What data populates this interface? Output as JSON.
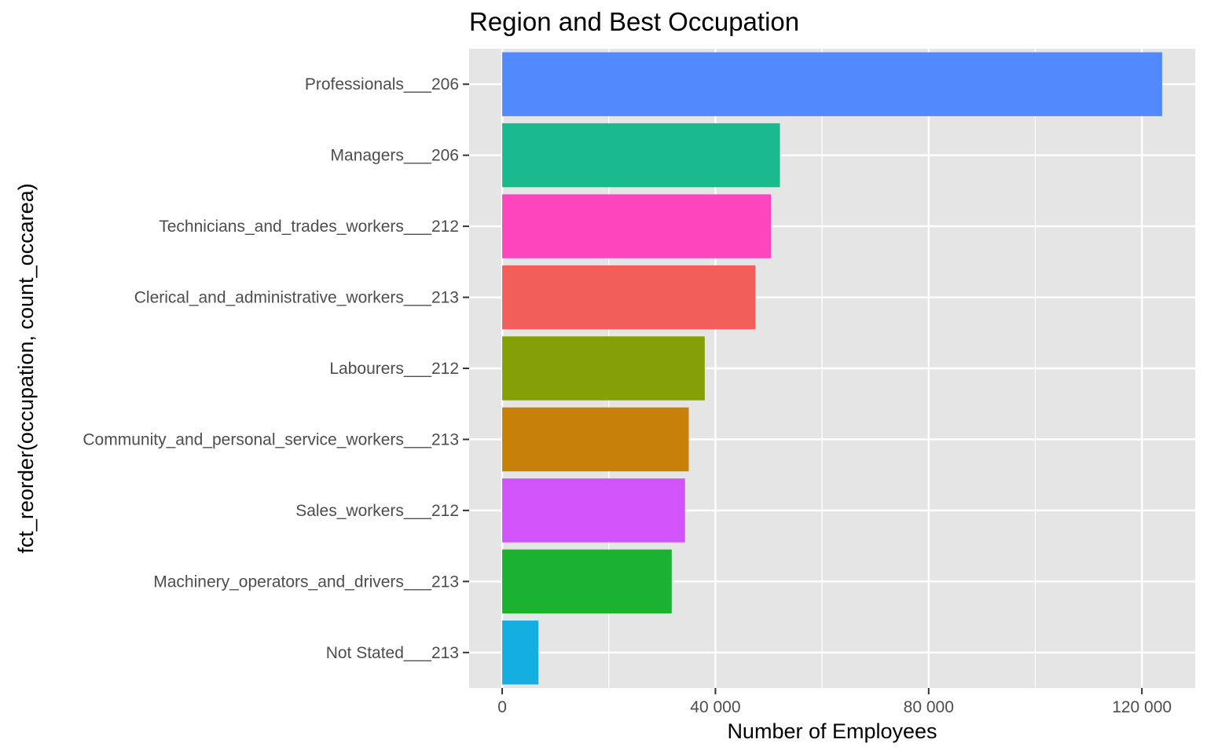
{
  "chart_data": {
    "type": "bar",
    "orientation": "horizontal",
    "title": "Region and Best Occupation",
    "xlabel": "Number of Employees",
    "ylabel": "fct_reorder(occupation, count_occarea)",
    "xlim": [
      -6200,
      130000
    ],
    "x_ticks": [
      0,
      40000,
      80000,
      120000
    ],
    "x_tick_labels": [
      "0",
      "40 000",
      "80 000",
      "120 000"
    ],
    "grid": true,
    "legend": "none",
    "panel_background": "#e5e5e5",
    "categories": [
      "Professionals___206",
      "Managers___206",
      "Technicians_and_trades_workers___212",
      "Clerical_and_administrative_workers___213",
      "Labourers___212",
      "Community_and_personal_service_workers___213",
      "Sales_workers___212",
      "Machinery_operators_and_drivers___213",
      "Not Stated___213"
    ],
    "values": [
      123800,
      52100,
      50400,
      47500,
      38000,
      35000,
      34300,
      31800,
      6800
    ],
    "colors": [
      "#528afe",
      "#1ab98e",
      "#fd46be",
      "#f25f5b",
      "#85a006",
      "#c78108",
      "#d054f9",
      "#1ab230",
      "#15aee0"
    ]
  }
}
